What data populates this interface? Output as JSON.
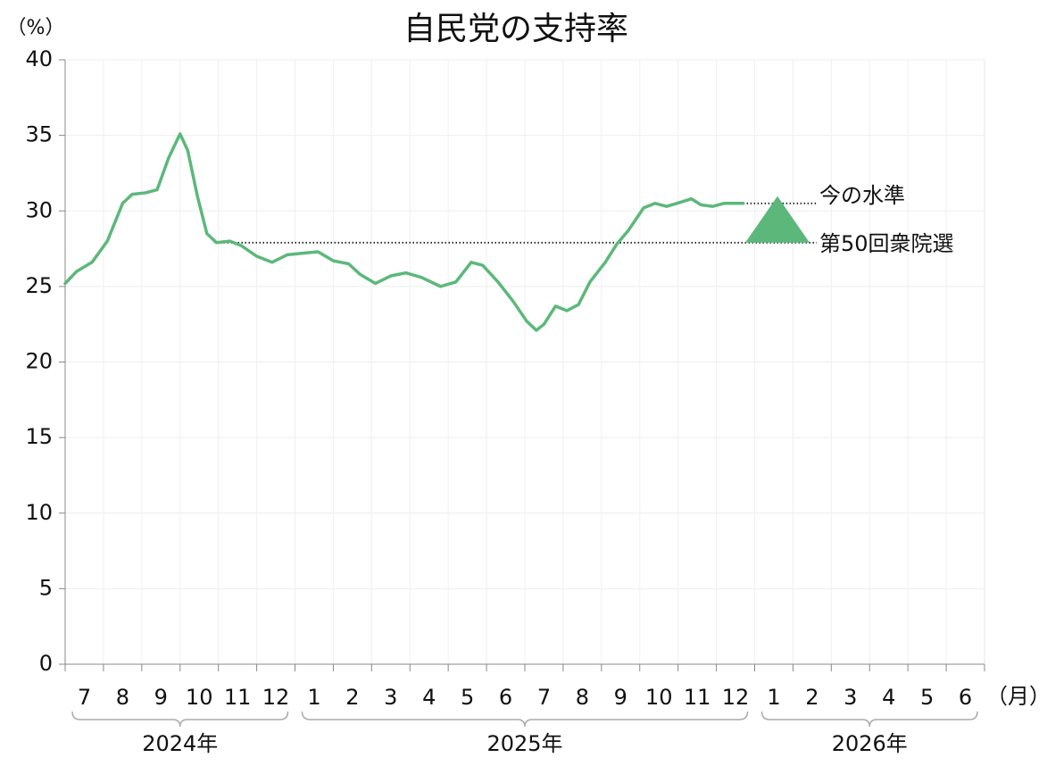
{
  "chart_data": {
    "type": "line",
    "title": "自民党の支持率",
    "y_label": "（%）",
    "x_unit": "（月）",
    "xlim": [
      0,
      24
    ],
    "ylim": [
      0,
      40
    ],
    "yticks": [
      0,
      5,
      10,
      15,
      20,
      25,
      30,
      35,
      40
    ],
    "xticks": [
      {
        "value": 0.5,
        "label": "7"
      },
      {
        "value": 1.5,
        "label": "8"
      },
      {
        "value": 2.5,
        "label": "9"
      },
      {
        "value": 3.5,
        "label": "10"
      },
      {
        "value": 4.5,
        "label": "11"
      },
      {
        "value": 5.5,
        "label": "12"
      },
      {
        "value": 6.5,
        "label": "1"
      },
      {
        "value": 7.5,
        "label": "2"
      },
      {
        "value": 8.5,
        "label": "3"
      },
      {
        "value": 9.5,
        "label": "4"
      },
      {
        "value": 10.5,
        "label": "5"
      },
      {
        "value": 11.5,
        "label": "6"
      },
      {
        "value": 12.5,
        "label": "7"
      },
      {
        "value": 13.5,
        "label": "8"
      },
      {
        "value": 14.5,
        "label": "9"
      },
      {
        "value": 15.5,
        "label": "10"
      },
      {
        "value": 16.5,
        "label": "11"
      },
      {
        "value": 17.5,
        "label": "12"
      },
      {
        "value": 18.5,
        "label": "1"
      },
      {
        "value": 19.5,
        "label": "2"
      },
      {
        "value": 20.5,
        "label": "3"
      },
      {
        "value": 21.5,
        "label": "4"
      },
      {
        "value": 22.5,
        "label": "5"
      },
      {
        "value": 23.5,
        "label": "6"
      }
    ],
    "year_groups": [
      {
        "label": "2024年",
        "start": 0,
        "end": 6
      },
      {
        "label": "2025年",
        "start": 6,
        "end": 18
      },
      {
        "label": "2026年",
        "start": 18,
        "end": 24
      }
    ],
    "grid": true,
    "x": [
      0,
      0.3,
      0.7,
      1.1,
      1.5,
      1.75,
      2.1,
      2.4,
      2.7,
      3.0,
      3.2,
      3.45,
      3.7,
      3.95,
      4.3,
      4.6,
      5.0,
      5.4,
      5.8,
      6.2,
      6.6,
      7.0,
      7.4,
      7.7,
      8.1,
      8.5,
      8.9,
      9.3,
      9.8,
      10.2,
      10.6,
      10.9,
      11.3,
      11.7,
      12.05,
      12.3,
      12.5,
      12.8,
      13.1,
      13.4,
      13.7,
      14.1,
      14.4,
      14.7,
      15.1,
      15.4,
      15.7,
      16.1,
      16.35,
      16.6,
      16.9,
      17.2,
      17.7
    ],
    "series": [
      {
        "name": "自民党",
        "color": "#5cb87a",
        "values": [
          25.2,
          26.0,
          26.6,
          28.0,
          30.5,
          31.1,
          31.2,
          31.4,
          33.5,
          35.1,
          34.0,
          31.0,
          28.5,
          27.9,
          28.0,
          27.7,
          27.0,
          26.6,
          27.1,
          27.2,
          27.3,
          26.7,
          26.5,
          25.8,
          25.2,
          25.7,
          25.9,
          25.6,
          25.0,
          25.3,
          26.6,
          26.4,
          25.3,
          24.0,
          22.7,
          22.1,
          22.5,
          23.7,
          23.4,
          23.8,
          25.3,
          26.6,
          27.8,
          28.7,
          30.2,
          30.5,
          30.3,
          30.6,
          30.8,
          30.4,
          30.3,
          30.5,
          30.5
        ]
      }
    ],
    "annotations": [
      {
        "label": "今の水準",
        "value": 30.5,
        "x_start": 17.7
      },
      {
        "label": "第50回衆院選",
        "value": 27.9,
        "x_start": 3.95
      }
    ]
  }
}
